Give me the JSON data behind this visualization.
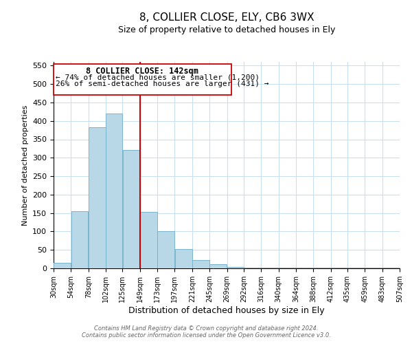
{
  "title": "8, COLLIER CLOSE, ELY, CB6 3WX",
  "subtitle": "Size of property relative to detached houses in Ely",
  "xlabel": "Distribution of detached houses by size in Ely",
  "ylabel": "Number of detached properties",
  "bar_color": "#b8d8e8",
  "bar_edge_color": "#7ab4cc",
  "background_color": "#ffffff",
  "grid_color": "#c8dff0",
  "bin_edges": [
    30,
    54,
    78,
    102,
    125,
    149,
    173,
    197,
    221,
    245,
    269,
    292,
    316,
    340,
    364,
    388,
    412,
    435,
    459,
    483,
    507
  ],
  "bin_labels": [
    "30sqm",
    "54sqm",
    "78sqm",
    "102sqm",
    "125sqm",
    "149sqm",
    "173sqm",
    "197sqm",
    "221sqm",
    "245sqm",
    "269sqm",
    "292sqm",
    "316sqm",
    "340sqm",
    "364sqm",
    "388sqm",
    "412sqm",
    "435sqm",
    "459sqm",
    "483sqm",
    "507sqm"
  ],
  "bar_heights": [
    15,
    155,
    382,
    420,
    322,
    153,
    101,
    53,
    22,
    11,
    3,
    2,
    1,
    1,
    1,
    1,
    1,
    1,
    1,
    1
  ],
  "ylim": [
    0,
    560
  ],
  "yticks": [
    0,
    50,
    100,
    150,
    200,
    250,
    300,
    350,
    400,
    450,
    500,
    550
  ],
  "vline_x": 149,
  "vline_color": "#cc0000",
  "annotation_title": "8 COLLIER CLOSE: 142sqm",
  "annotation_line1": "← 74% of detached houses are smaller (1,200)",
  "annotation_line2": "26% of semi-detached houses are larger (431) →",
  "footer_line1": "Contains HM Land Registry data © Crown copyright and database right 2024.",
  "footer_line2": "Contains public sector information licensed under the Open Government Licence v3.0."
}
